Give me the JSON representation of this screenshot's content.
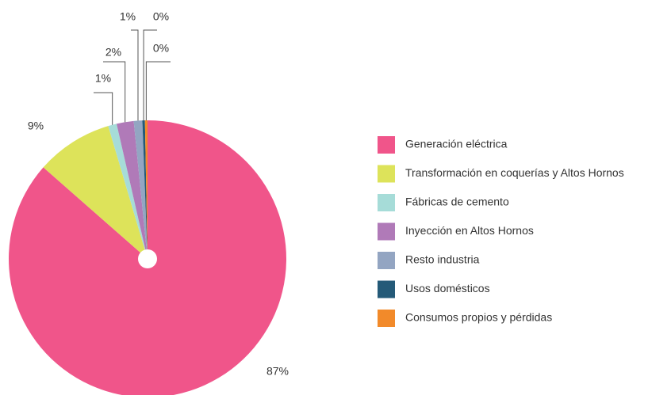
{
  "chart_data": {
    "type": "pie",
    "categories": [
      "Generación eléctrica",
      "Transformación en coquerías y Altos Hornos",
      "Fábricas de cemento",
      "Inyección en Altos Hornos",
      "Resto industria",
      "Usos domésticos",
      "Consumos propios y pérdidas"
    ],
    "values": [
      87,
      9,
      1,
      2,
      1,
      0.3,
      0.3
    ],
    "value_labels": [
      "87%",
      "9%",
      "1%",
      "2%",
      "1%",
      "0%",
      "0%"
    ],
    "colors": [
      "#f0558a",
      "#dde35a",
      "#a6dcd8",
      "#b07ab8",
      "#93a5c2",
      "#245a78",
      "#f28a2a"
    ],
    "legend": "right"
  }
}
